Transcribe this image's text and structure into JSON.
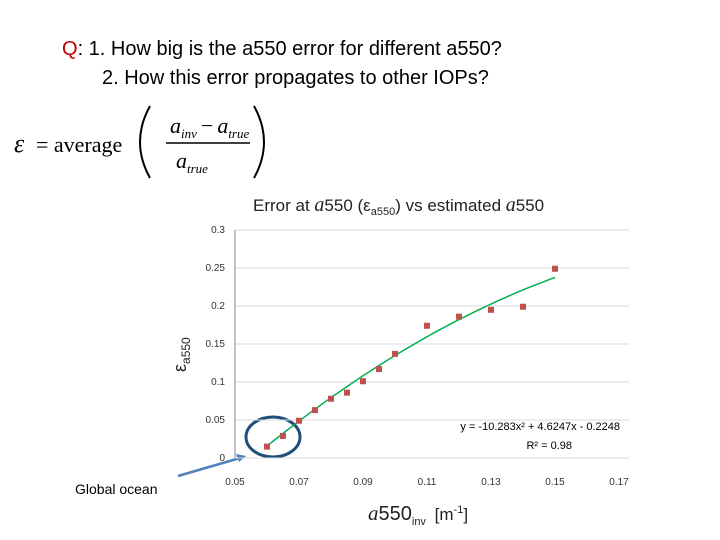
{
  "header": {
    "q": "Q",
    "line1": ": 1. How big is the a550 error for different a550?",
    "line2": "2. How this error propagates to other IOPs?"
  },
  "formula": {
    "symbol": "ε",
    "op": "= average",
    "num_a1": "a",
    "num_sub1": "inv",
    "minus": "−",
    "num_a2": "a",
    "num_sub2": "true",
    "den_a": "a",
    "den_sub": "true"
  },
  "side_label": "Global ocean",
  "chart_data": {
    "type": "scatter",
    "title": [
      "Error at ",
      "a",
      "550 (ε",
      "a550",
      ") vs estimated ",
      "a",
      "550"
    ],
    "x_label": [
      "a",
      "550",
      "inv",
      " [m",
      "-1",
      "]"
    ],
    "y_label": [
      "ε",
      "a550"
    ],
    "x": [
      0.06,
      0.065,
      0.07,
      0.075,
      0.08,
      0.085,
      0.09,
      0.095,
      0.1,
      0.11,
      0.12,
      0.13,
      0.14,
      0.15
    ],
    "series": [
      {
        "name": "a550 error",
        "color": "#c0504d",
        "values": [
          0.015,
          0.029,
          0.049,
          0.063,
          0.078,
          0.086,
          0.101,
          0.117,
          0.137,
          0.174,
          0.186,
          0.195,
          0.199,
          0.249
        ]
      }
    ],
    "trendline": {
      "color": "#00b050",
      "coefficients": [
        -10.283,
        4.6247,
        -0.2248
      ],
      "equation": "y = -10.283x² + 4.6247x - 0.2248",
      "r2": "R² = 0.98"
    },
    "xlim": [
      0.05,
      0.17
    ],
    "xticks": [
      0.05,
      0.07,
      0.09,
      0.11,
      0.13,
      0.15,
      0.17
    ],
    "ylim": [
      0,
      0.3
    ],
    "yticks": [
      0,
      0.05,
      0.1,
      0.15,
      0.2,
      0.25,
      0.3
    ],
    "grid": true
  }
}
